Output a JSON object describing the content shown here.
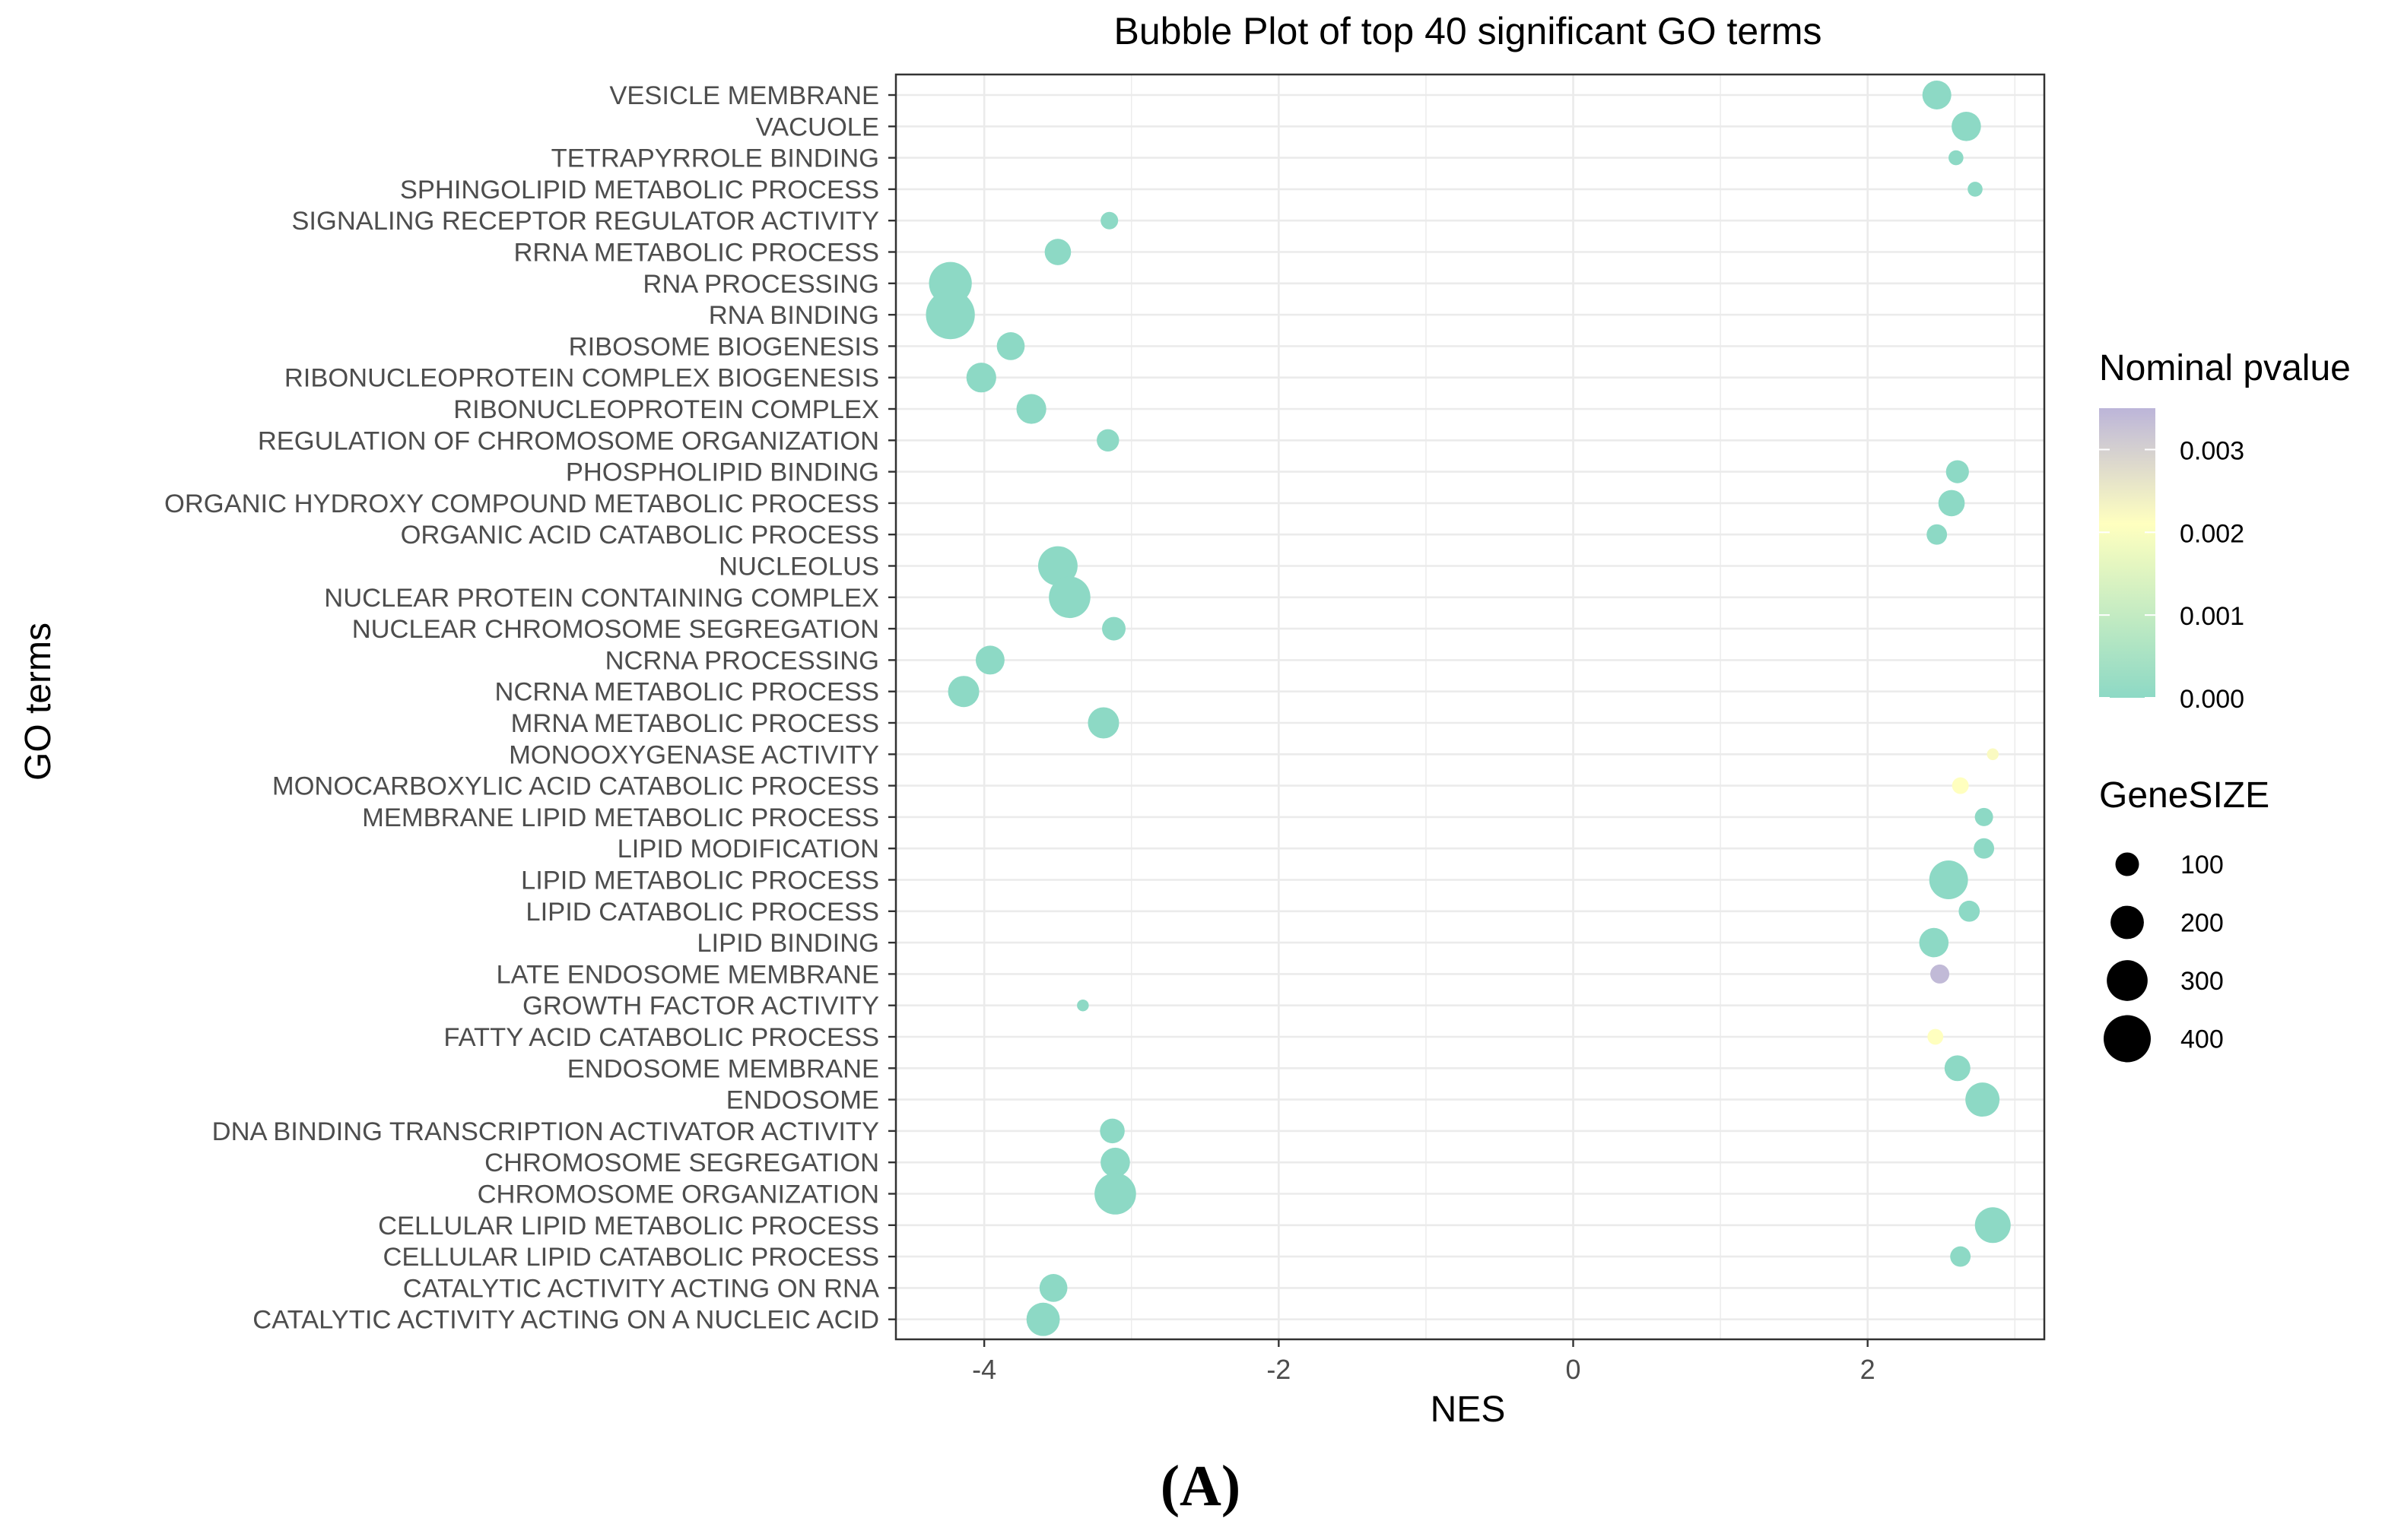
{
  "figure": {
    "panel_label": "(A)"
  },
  "chart_data": {
    "type": "scatter",
    "subtype": "bubble",
    "title": "Bubble Plot of top 40 significant GO terms",
    "xlabel": "NES",
    "ylabel": "GO terms",
    "xlim": [
      -4.6,
      3.2
    ],
    "xticks": [
      -4,
      -2,
      0,
      2
    ],
    "xtick_labels": [
      "-4",
      "-2",
      "0",
      "2"
    ],
    "grid": true,
    "color_legend": {
      "title": "Nominal pvalue",
      "range": [
        0,
        0.0035
      ],
      "ticks": [
        0.003,
        0.002,
        0.001,
        0.0
      ],
      "tick_labels": [
        "0.003",
        "0.002",
        "0.001",
        "0.000"
      ],
      "colors": {
        "low": "#8dd9c5",
        "mid": "#ffffbf",
        "high": "#bcb5d9"
      }
    },
    "size_legend": {
      "title": "GeneSIZE",
      "values": [
        100,
        200,
        300,
        400
      ],
      "labels": [
        "100",
        "200",
        "300",
        "400"
      ]
    },
    "categories": [
      "VESICLE MEMBRANE",
      "VACUOLE",
      "TETRAPYRROLE BINDING",
      "SPHINGOLIPID METABOLIC PROCESS",
      "SIGNALING RECEPTOR REGULATOR ACTIVITY",
      "RRNA METABOLIC PROCESS",
      "RNA PROCESSING",
      "RNA BINDING",
      "RIBOSOME BIOGENESIS",
      "RIBONUCLEOPROTEIN COMPLEX BIOGENESIS",
      "RIBONUCLEOPROTEIN COMPLEX",
      "REGULATION OF CHROMOSOME ORGANIZATION",
      "PHOSPHOLIPID BINDING",
      "ORGANIC HYDROXY COMPOUND METABOLIC PROCESS",
      "ORGANIC ACID CATABOLIC PROCESS",
      "NUCLEOLUS",
      "NUCLEAR PROTEIN CONTAINING COMPLEX",
      "NUCLEAR CHROMOSOME SEGREGATION",
      "NCRNA PROCESSING",
      "NCRNA METABOLIC PROCESS",
      "MRNA METABOLIC PROCESS",
      "MONOOXYGENASE ACTIVITY",
      "MONOCARBOXYLIC ACID CATABOLIC PROCESS",
      "MEMBRANE LIPID METABOLIC PROCESS",
      "LIPID MODIFICATION",
      "LIPID METABOLIC PROCESS",
      "LIPID CATABOLIC PROCESS",
      "LIPID BINDING",
      "LATE ENDOSOME MEMBRANE",
      "GROWTH FACTOR ACTIVITY",
      "FATTY ACID CATABOLIC PROCESS",
      "ENDOSOME MEMBRANE",
      "ENDOSOME",
      "DNA BINDING TRANSCRIPTION ACTIVATOR ACTIVITY",
      "CHROMOSOME SEGREGATION",
      "CHROMOSOME ORGANIZATION",
      "CELLULAR LIPID METABOLIC PROCESS",
      "CELLULAR LIPID CATABOLIC PROCESS",
      "CATALYTIC ACTIVITY ACTING ON RNA",
      "CATALYTIC ACTIVITY ACTING ON A NUCLEIC ACID"
    ],
    "points": [
      {
        "term": "VESICLE MEMBRANE",
        "nes": 2.47,
        "size": 150,
        "pvalue": 0.0
      },
      {
        "term": "VACUOLE",
        "nes": 2.67,
        "size": 155,
        "pvalue": 0.0
      },
      {
        "term": "TETRAPYRROLE BINDING",
        "nes": 2.6,
        "size": 40,
        "pvalue": 0.0
      },
      {
        "term": "SPHINGOLIPID METABOLIC PROCESS",
        "nes": 2.73,
        "size": 40,
        "pvalue": 0.0
      },
      {
        "term": "SIGNALING RECEPTOR REGULATOR ACTIVITY",
        "nes": -3.15,
        "size": 55,
        "pvalue": 0.0
      },
      {
        "term": "RRNA METABOLIC PROCESS",
        "nes": -3.5,
        "size": 125,
        "pvalue": 0.0
      },
      {
        "term": "RNA PROCESSING",
        "nes": -4.23,
        "size": 330,
        "pvalue": 0.0
      },
      {
        "term": "RNA BINDING",
        "nes": -4.23,
        "size": 430,
        "pvalue": 0.0
      },
      {
        "term": "RIBOSOME BIOGENESIS",
        "nes": -3.82,
        "size": 140,
        "pvalue": 0.0
      },
      {
        "term": "RIBONUCLEOPROTEIN COMPLEX BIOGENESIS",
        "nes": -4.02,
        "size": 160,
        "pvalue": 0.0
      },
      {
        "term": "RIBONUCLEOPROTEIN COMPLEX",
        "nes": -3.68,
        "size": 160,
        "pvalue": 0.0
      },
      {
        "term": "REGULATION OF CHROMOSOME ORGANIZATION",
        "nes": -3.16,
        "size": 90,
        "pvalue": 0.0
      },
      {
        "term": "PHOSPHOLIPID BINDING",
        "nes": 2.61,
        "size": 95,
        "pvalue": 0.0
      },
      {
        "term": "ORGANIC HYDROXY COMPOUND METABOLIC PROCESS",
        "nes": 2.57,
        "size": 125,
        "pvalue": 0.0
      },
      {
        "term": "ORGANIC ACID CATABOLIC PROCESS",
        "nes": 2.47,
        "size": 75,
        "pvalue": 0.0
      },
      {
        "term": "NUCLEOLUS",
        "nes": -3.5,
        "size": 280,
        "pvalue": 0.0
      },
      {
        "term": "NUCLEAR PROTEIN CONTAINING COMPLEX",
        "nes": -3.42,
        "size": 310,
        "pvalue": 0.0
      },
      {
        "term": "NUCLEAR CHROMOSOME SEGREGATION",
        "nes": -3.12,
        "size": 100,
        "pvalue": 0.0
      },
      {
        "term": "NCRNA PROCESSING",
        "nes": -3.96,
        "size": 150,
        "pvalue": 0.0
      },
      {
        "term": "NCRNA METABOLIC PROCESS",
        "nes": -4.14,
        "size": 175,
        "pvalue": 0.0
      },
      {
        "term": "MRNA METABOLIC PROCESS",
        "nes": -3.19,
        "size": 175,
        "pvalue": 0.0
      },
      {
        "term": "MONOOXYGENASE ACTIVITY",
        "nes": 2.85,
        "size": 25,
        "pvalue": 0.0022
      },
      {
        "term": "MONOCARBOXYLIC ACID CATABOLIC PROCESS",
        "nes": 2.63,
        "size": 50,
        "pvalue": 0.0021
      },
      {
        "term": "MEMBRANE LIPID METABOLIC PROCESS",
        "nes": 2.79,
        "size": 60,
        "pvalue": 0.0
      },
      {
        "term": "LIPID MODIFICATION",
        "nes": 2.79,
        "size": 75,
        "pvalue": 0.0
      },
      {
        "term": "LIPID METABOLIC PROCESS",
        "nes": 2.55,
        "size": 270,
        "pvalue": 0.0
      },
      {
        "term": "LIPID CATABOLIC PROCESS",
        "nes": 2.69,
        "size": 80,
        "pvalue": 0.0
      },
      {
        "term": "LIPID BINDING",
        "nes": 2.45,
        "size": 155,
        "pvalue": 0.0
      },
      {
        "term": "LATE ENDOSOME MEMBRANE",
        "nes": 2.49,
        "size": 65,
        "pvalue": 0.0034
      },
      {
        "term": "GROWTH FACTOR ACTIVITY",
        "nes": -3.33,
        "size": 25,
        "pvalue": 0.0
      },
      {
        "term": "FATTY ACID CATABOLIC PROCESS",
        "nes": 2.46,
        "size": 45,
        "pvalue": 0.0021
      },
      {
        "term": "ENDOSOME MEMBRANE",
        "nes": 2.61,
        "size": 120,
        "pvalue": 0.0
      },
      {
        "term": "ENDOSOME",
        "nes": 2.78,
        "size": 210,
        "pvalue": 0.0
      },
      {
        "term": "DNA BINDING TRANSCRIPTION ACTIVATOR ACTIVITY",
        "nes": -3.13,
        "size": 110,
        "pvalue": 0.0
      },
      {
        "term": "CHROMOSOME SEGREGATION",
        "nes": -3.11,
        "size": 155,
        "pvalue": 0.0
      },
      {
        "term": "CHROMOSOME ORGANIZATION",
        "nes": -3.11,
        "size": 310,
        "pvalue": 0.0
      },
      {
        "term": "CELLULAR LIPID METABOLIC PROCESS",
        "nes": 2.85,
        "size": 230,
        "pvalue": 0.0
      },
      {
        "term": "CELLULAR LIPID CATABOLIC PROCESS",
        "nes": 2.63,
        "size": 75,
        "pvalue": 0.0
      },
      {
        "term": "CATALYTIC ACTIVITY ACTING ON RNA",
        "nes": -3.53,
        "size": 140,
        "pvalue": 0.0
      },
      {
        "term": "CATALYTIC ACTIVITY ACTING ON A NUCLEIC ACID",
        "nes": -3.6,
        "size": 200,
        "pvalue": 0.0
      }
    ]
  }
}
